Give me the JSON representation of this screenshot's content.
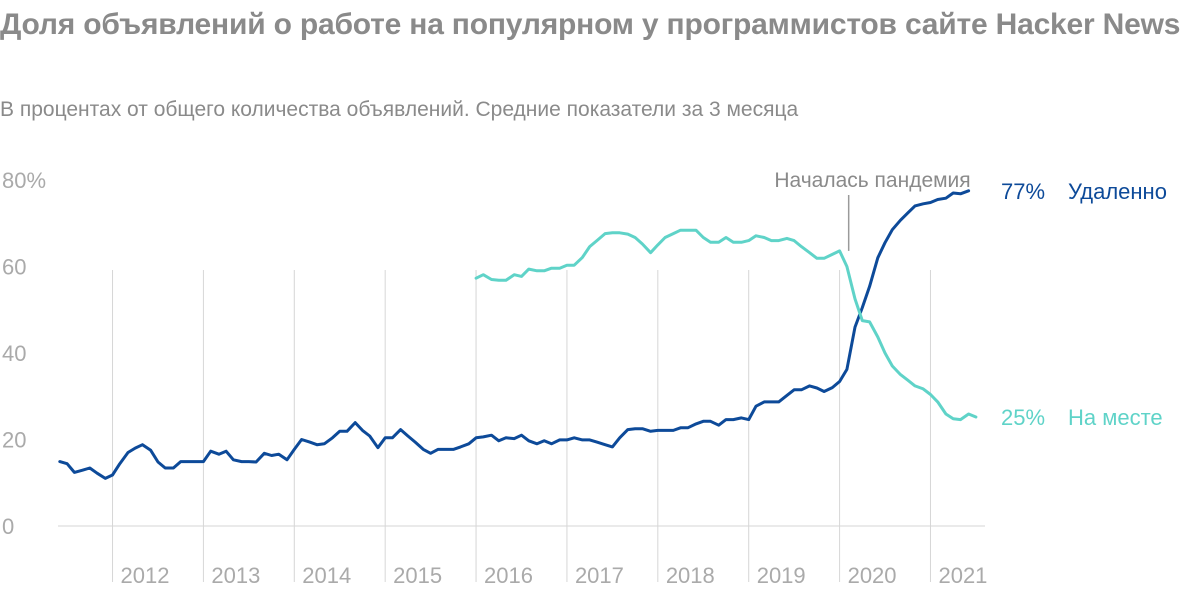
{
  "header": {
    "title": "Доля объявлений о работе на популярном у программистов сайте Hacker News",
    "subtitle": "В процентах от общего количества объявлений. Средние показатели за 3 месяца"
  },
  "colors": {
    "remote": "#0d4a99",
    "onsite": "#5fd3c8",
    "grid": "#d6d6d6",
    "axis_text": "#aaaaaa"
  },
  "chart_data": {
    "type": "line",
    "ylim": [
      0,
      80
    ],
    "y_ticks": [
      {
        "value": 0,
        "label": "0"
      },
      {
        "value": 20,
        "label": "20"
      },
      {
        "value": 40,
        "label": "40"
      },
      {
        "value": 60,
        "label": "60"
      },
      {
        "value": 80,
        "label": "80%"
      }
    ],
    "xlim": [
      2011.4,
      2021.6
    ],
    "x_ticks": [
      {
        "value": 2012,
        "label": "2012"
      },
      {
        "value": 2013,
        "label": "2013"
      },
      {
        "value": 2014,
        "label": "2014"
      },
      {
        "value": 2015,
        "label": "2015"
      },
      {
        "value": 2016,
        "label": "2016"
      },
      {
        "value": 2017,
        "label": "2017"
      },
      {
        "value": 2018,
        "label": "2018"
      },
      {
        "value": 2019,
        "label": "2019"
      },
      {
        "value": 2020,
        "label": "2020"
      },
      {
        "value": 2021,
        "label": "2021"
      }
    ],
    "annotation": {
      "x": 2020.1,
      "text": "Началась пандемия"
    },
    "series": [
      {
        "name": "Удаленно",
        "end_label": "77%",
        "color": "#0d4a99",
        "points": [
          [
            2011.42,
            14.9
          ],
          [
            2011.5,
            14.4
          ],
          [
            2011.58,
            12.4
          ],
          [
            2011.67,
            12.9
          ],
          [
            2011.75,
            13.4
          ],
          [
            2011.83,
            12.2
          ],
          [
            2011.92,
            11
          ],
          [
            2012,
            11.8
          ],
          [
            2012.08,
            14.4
          ],
          [
            2012.17,
            17
          ],
          [
            2012.25,
            18
          ],
          [
            2012.33,
            18.8
          ],
          [
            2012.42,
            17.5
          ],
          [
            2012.5,
            14.8
          ],
          [
            2012.58,
            13.4
          ],
          [
            2012.67,
            13.4
          ],
          [
            2012.75,
            14.9
          ],
          [
            2012.83,
            14.9
          ],
          [
            2012.92,
            14.9
          ],
          [
            2013,
            14.9
          ],
          [
            2013.08,
            17.3
          ],
          [
            2013.17,
            16.6
          ],
          [
            2013.25,
            17.3
          ],
          [
            2013.33,
            15.3
          ],
          [
            2013.42,
            14.9
          ],
          [
            2013.5,
            14.9
          ],
          [
            2013.58,
            14.8
          ],
          [
            2013.67,
            16.8
          ],
          [
            2013.75,
            16.3
          ],
          [
            2013.83,
            16.6
          ],
          [
            2013.92,
            15.3
          ],
          [
            2014,
            17.7
          ],
          [
            2014.08,
            20
          ],
          [
            2014.17,
            19.4
          ],
          [
            2014.25,
            18.8
          ],
          [
            2014.33,
            19
          ],
          [
            2014.42,
            20.4
          ],
          [
            2014.5,
            21.9
          ],
          [
            2014.58,
            21.9
          ],
          [
            2014.67,
            23.9
          ],
          [
            2014.75,
            22.1
          ],
          [
            2014.83,
            20.8
          ],
          [
            2014.92,
            18.1
          ],
          [
            2015,
            20.4
          ],
          [
            2015.08,
            20.4
          ],
          [
            2015.17,
            22.3
          ],
          [
            2015.25,
            20.8
          ],
          [
            2015.33,
            19.4
          ],
          [
            2015.42,
            17.7
          ],
          [
            2015.5,
            16.8
          ],
          [
            2015.58,
            17.7
          ],
          [
            2015.67,
            17.7
          ],
          [
            2015.75,
            17.7
          ],
          [
            2015.83,
            18.3
          ],
          [
            2015.92,
            19
          ],
          [
            2016,
            20.4
          ],
          [
            2016.08,
            20.6
          ],
          [
            2016.17,
            21
          ],
          [
            2016.25,
            19.7
          ],
          [
            2016.33,
            20.4
          ],
          [
            2016.42,
            20.2
          ],
          [
            2016.5,
            21
          ],
          [
            2016.58,
            19.7
          ],
          [
            2016.67,
            19
          ],
          [
            2016.75,
            19.7
          ],
          [
            2016.83,
            19
          ],
          [
            2016.92,
            19.9
          ],
          [
            2017,
            19.9
          ],
          [
            2017.08,
            20.4
          ],
          [
            2017.17,
            19.9
          ],
          [
            2017.25,
            19.9
          ],
          [
            2017.33,
            19.4
          ],
          [
            2017.42,
            18.8
          ],
          [
            2017.5,
            18.3
          ],
          [
            2017.58,
            20.4
          ],
          [
            2017.67,
            22.3
          ],
          [
            2017.75,
            22.5
          ],
          [
            2017.83,
            22.5
          ],
          [
            2017.92,
            21.9
          ],
          [
            2018,
            22.1
          ],
          [
            2018.08,
            22.1
          ],
          [
            2018.17,
            22.1
          ],
          [
            2018.25,
            22.7
          ],
          [
            2018.33,
            22.7
          ],
          [
            2018.42,
            23.6
          ],
          [
            2018.5,
            24.2
          ],
          [
            2018.58,
            24.2
          ],
          [
            2018.67,
            23.3
          ],
          [
            2018.75,
            24.6
          ],
          [
            2018.83,
            24.6
          ],
          [
            2018.92,
            25
          ],
          [
            2019,
            24.6
          ],
          [
            2019.08,
            27.7
          ],
          [
            2019.17,
            28.7
          ],
          [
            2019.25,
            28.7
          ],
          [
            2019.33,
            28.7
          ],
          [
            2019.42,
            30.2
          ],
          [
            2019.5,
            31.5
          ],
          [
            2019.58,
            31.5
          ],
          [
            2019.67,
            32.4
          ],
          [
            2019.75,
            31.9
          ],
          [
            2019.83,
            31.1
          ],
          [
            2019.92,
            32
          ],
          [
            2020,
            33.4
          ],
          [
            2020.08,
            36.2
          ],
          [
            2020.17,
            46
          ],
          [
            2020.25,
            50.5
          ],
          [
            2020.33,
            55.4
          ],
          [
            2020.42,
            62
          ],
          [
            2020.5,
            65.5
          ],
          [
            2020.58,
            68.5
          ],
          [
            2020.67,
            70.7
          ],
          [
            2020.75,
            72.4
          ],
          [
            2020.83,
            74
          ],
          [
            2020.92,
            74.5
          ],
          [
            2021,
            74.8
          ],
          [
            2021.08,
            75.5
          ],
          [
            2021.17,
            75.8
          ],
          [
            2021.25,
            77
          ],
          [
            2021.33,
            76.8
          ],
          [
            2021.42,
            77.5
          ]
        ]
      },
      {
        "name": "На месте",
        "end_label": "25%",
        "color": "#5fd3c8",
        "points": [
          [
            2016,
            57.3
          ],
          [
            2016.08,
            58.1
          ],
          [
            2016.17,
            57
          ],
          [
            2016.25,
            56.8
          ],
          [
            2016.33,
            56.8
          ],
          [
            2016.42,
            58.1
          ],
          [
            2016.5,
            57.7
          ],
          [
            2016.58,
            59.4
          ],
          [
            2016.67,
            59
          ],
          [
            2016.75,
            59
          ],
          [
            2016.83,
            59.6
          ],
          [
            2016.92,
            59.6
          ],
          [
            2017,
            60.3
          ],
          [
            2017.08,
            60.3
          ],
          [
            2017.17,
            62.1
          ],
          [
            2017.25,
            64.6
          ],
          [
            2017.33,
            66
          ],
          [
            2017.42,
            67.6
          ],
          [
            2017.5,
            67.8
          ],
          [
            2017.58,
            67.8
          ],
          [
            2017.67,
            67.5
          ],
          [
            2017.75,
            66.7
          ],
          [
            2017.83,
            65.2
          ],
          [
            2017.92,
            63.2
          ],
          [
            2018,
            65
          ],
          [
            2018.08,
            66.7
          ],
          [
            2018.17,
            67.6
          ],
          [
            2018.25,
            68.4
          ],
          [
            2018.33,
            68.4
          ],
          [
            2018.42,
            68.4
          ],
          [
            2018.5,
            66.7
          ],
          [
            2018.58,
            65.6
          ],
          [
            2018.67,
            65.6
          ],
          [
            2018.75,
            66.7
          ],
          [
            2018.83,
            65.6
          ],
          [
            2018.92,
            65.6
          ],
          [
            2019,
            66
          ],
          [
            2019.08,
            67.1
          ],
          [
            2019.17,
            66.7
          ],
          [
            2019.25,
            66
          ],
          [
            2019.33,
            66
          ],
          [
            2019.42,
            66.5
          ],
          [
            2019.5,
            66
          ],
          [
            2019.58,
            64.6
          ],
          [
            2019.67,
            63.2
          ],
          [
            2019.75,
            61.9
          ],
          [
            2019.83,
            61.9
          ],
          [
            2019.92,
            62.8
          ],
          [
            2020,
            63.6
          ],
          [
            2020.08,
            60
          ],
          [
            2020.17,
            52.5
          ],
          [
            2020.25,
            47.5
          ],
          [
            2020.33,
            47.2
          ],
          [
            2020.42,
            43.7
          ],
          [
            2020.5,
            40
          ],
          [
            2020.58,
            37
          ],
          [
            2020.67,
            35
          ],
          [
            2020.75,
            33.7
          ],
          [
            2020.83,
            32.4
          ],
          [
            2020.92,
            31.7
          ],
          [
            2021,
            30.4
          ],
          [
            2021.08,
            28.7
          ],
          [
            2021.17,
            25.9
          ],
          [
            2021.25,
            24.8
          ],
          [
            2021.33,
            24.6
          ],
          [
            2021.42,
            25.9
          ],
          [
            2021.5,
            25.2
          ]
        ]
      }
    ]
  }
}
